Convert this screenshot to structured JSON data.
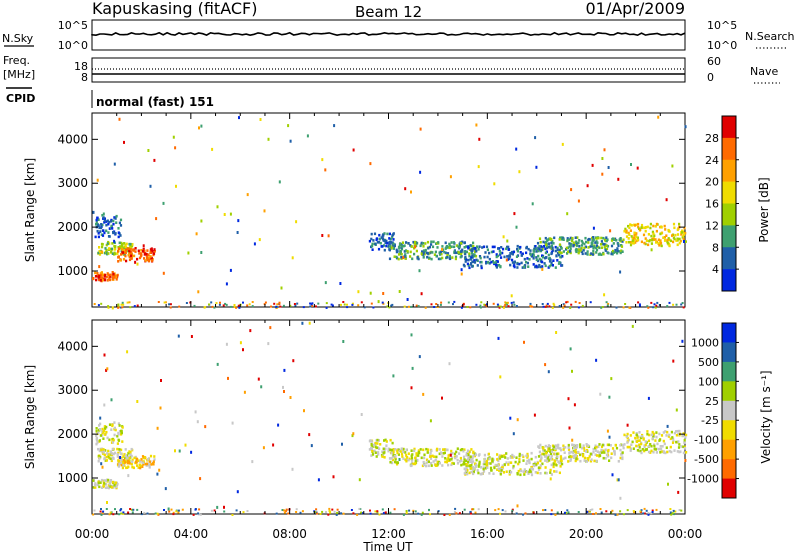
{
  "header": {
    "station": "Kapuskasing (fitACF)",
    "beam": "Beam 12",
    "date": "01/Apr/2009"
  },
  "top_panels": {
    "nsky": {
      "label": "N.Sky",
      "left_ticks": [
        "10^5",
        "10^0"
      ],
      "right_ticks": [
        "10^5",
        "10^0"
      ],
      "right_label": "N.Search"
    },
    "freq": {
      "label_lines": [
        "Freq.",
        "[MHz]"
      ],
      "left_ticks": [
        "18",
        "8"
      ],
      "right_ticks": [
        "60",
        "0"
      ],
      "right_label": "Nave"
    },
    "cpid": {
      "label": "CPID",
      "value": "normal (fast) 151"
    }
  },
  "time_axis": {
    "labels": [
      "00:00",
      "04:00",
      "08:00",
      "12:00",
      "16:00",
      "20:00",
      "00:00"
    ],
    "title": "Time UT"
  },
  "chart_data": [
    {
      "type": "heatmap",
      "name": "power",
      "ylabel": "Slant Range [km]",
      "xlabel": "Time UT",
      "xlim_hours": [
        0,
        24
      ],
      "ylim": [
        180,
        4600
      ],
      "yticks": [
        1000,
        2000,
        3000,
        4000
      ],
      "colorbar": {
        "title": "Power [dB]",
        "tick_labels": [
          "28",
          "24",
          "20",
          "16",
          "12",
          "8",
          "4"
        ],
        "colors": [
          "#e00000",
          "#ff6a00",
          "#ffa000",
          "#f0dc00",
          "#a0d000",
          "#3ea070",
          "#1f5fa8",
          "#0028e0"
        ]
      },
      "bands": [
        {
          "t0": 0.0,
          "t1": 1.0,
          "r0": 800,
          "r1": 1000,
          "level": 6
        },
        {
          "t0": 0.2,
          "t1": 1.6,
          "r0": 1400,
          "r1": 1700,
          "level": 3
        },
        {
          "t0": 1.0,
          "t1": 2.5,
          "r0": 1250,
          "r1": 1550,
          "level": 6
        },
        {
          "t0": 0.1,
          "t1": 1.2,
          "r0": 1800,
          "r1": 2300,
          "level": 1
        },
        {
          "t0": 11.2,
          "t1": 12.2,
          "r0": 1500,
          "r1": 1900,
          "level": 1
        },
        {
          "t0": 12.0,
          "t1": 15.5,
          "r0": 1300,
          "r1": 1700,
          "level": 2
        },
        {
          "t0": 15.0,
          "t1": 19.0,
          "r0": 1100,
          "r1": 1600,
          "level": 1
        },
        {
          "t0": 18.0,
          "t1": 21.5,
          "r0": 1400,
          "r1": 1800,
          "level": 2
        },
        {
          "t0": 21.5,
          "t1": 24.0,
          "r0": 1600,
          "r1": 2100,
          "level": 4
        }
      ]
    },
    {
      "type": "heatmap",
      "name": "velocity",
      "ylabel": "Slant Range [km]",
      "xlabel": "Time UT",
      "xlim_hours": [
        0,
        24
      ],
      "ylim": [
        180,
        4600
      ],
      "yticks": [
        1000,
        2000,
        3000,
        4000
      ],
      "colorbar": {
        "title": "Velocity [m s⁻¹]",
        "tick_labels": [
          "1000",
          "500",
          "100",
          "25",
          "-25",
          "-100",
          "-500",
          "-1000"
        ],
        "colors": [
          "#0028e0",
          "#1f5fa8",
          "#3ea070",
          "#a0d000",
          "#c8c8c8",
          "#f0dc00",
          "#ffa000",
          "#ff6a00",
          "#e00000"
        ]
      },
      "bands": [
        {
          "t0": 0.0,
          "t1": 1.0,
          "r0": 800,
          "r1": 1000,
          "level": 4
        },
        {
          "t0": 0.2,
          "t1": 1.6,
          "r0": 1400,
          "r1": 1700,
          "level": 4
        },
        {
          "t0": 1.0,
          "t1": 2.5,
          "r0": 1250,
          "r1": 1550,
          "level": 5
        },
        {
          "t0": 0.1,
          "t1": 1.2,
          "r0": 1800,
          "r1": 2300,
          "level": 4
        },
        {
          "t0": 11.2,
          "t1": 12.2,
          "r0": 1500,
          "r1": 1900,
          "level": 4
        },
        {
          "t0": 12.0,
          "t1": 15.5,
          "r0": 1300,
          "r1": 1700,
          "level": 4
        },
        {
          "t0": 15.0,
          "t1": 19.0,
          "r0": 1100,
          "r1": 1600,
          "level": 4
        },
        {
          "t0": 18.0,
          "t1": 21.5,
          "r0": 1400,
          "r1": 1800,
          "level": 4
        },
        {
          "t0": 21.5,
          "t1": 24.0,
          "r0": 1600,
          "r1": 2100,
          "level": 4
        }
      ]
    }
  ]
}
